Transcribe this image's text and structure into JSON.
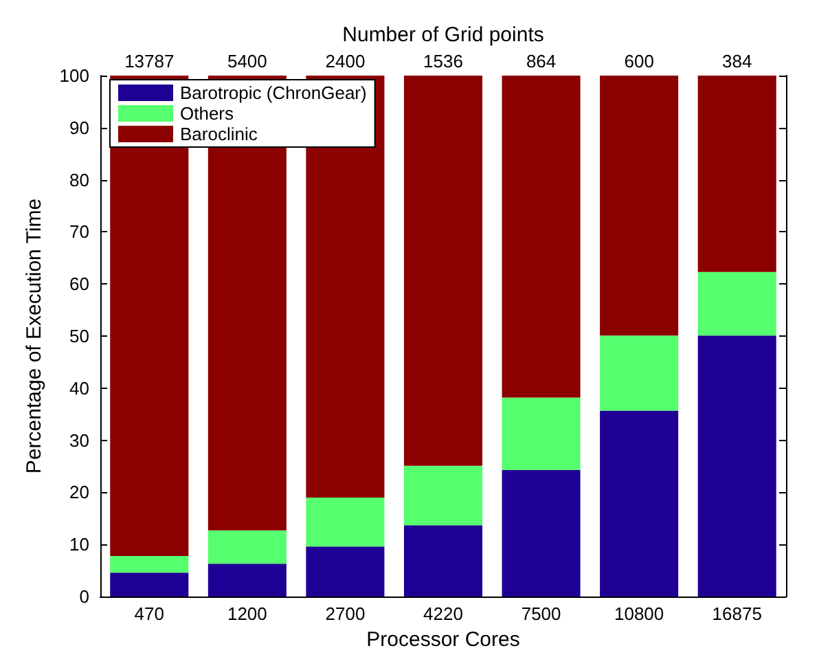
{
  "chart_data": {
    "type": "bar",
    "stacked": true,
    "xlabel": "Processor Cores",
    "ylabel": "Percentage of Execution Time",
    "x2label": "Number of Grid points",
    "categories": [
      "470",
      "1200",
      "2700",
      "4220",
      "7500",
      "10800",
      "16875"
    ],
    "series": [
      {
        "name": "Barotropic (ChronGear)",
        "color": "#1f0094",
        "values": [
          4.6,
          6.3,
          9.6,
          13.7,
          24.3,
          35.7,
          50.1
        ]
      },
      {
        "name": "Others",
        "color": "#55ff6e",
        "values": [
          3.2,
          6.4,
          9.4,
          11.4,
          13.9,
          14.4,
          12.2
        ]
      },
      {
        "name": "Baroclinic",
        "color": "#8b0000",
        "values": [
          92.2,
          87.3,
          81.0,
          74.9,
          61.8,
          49.9,
          37.7
        ]
      }
    ],
    "annotations": [
      "13787",
      "5400",
      "2400",
      "1536",
      "864",
      "600",
      "384"
    ],
    "ylim": [
      0,
      100
    ],
    "yticks": [
      0,
      10,
      20,
      30,
      40,
      50,
      60,
      70,
      80,
      90,
      100
    ],
    "grid": false,
    "legend": "top left"
  }
}
